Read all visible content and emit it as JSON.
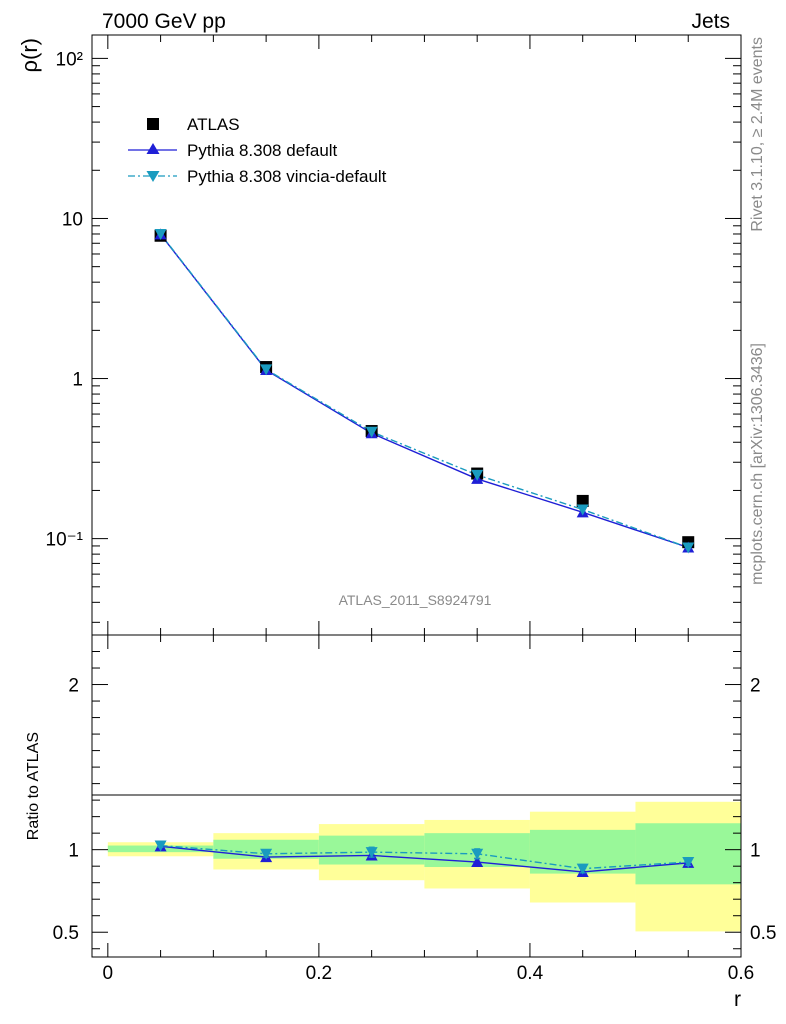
{
  "header": {
    "left_title": "7000 GeV pp",
    "right_title": "Jets",
    "analysis_tag": "ATLAS_2011_S8924791",
    "side_text_top": "Rivet 3.1.10, ≥ 2.4M events",
    "side_text_bottom": "mcplots.cern.ch [arXiv:1306.3436]"
  },
  "chart_data": [
    {
      "type": "scatter",
      "panel": "main",
      "ylabel": "ρ(r)",
      "yscale": "log",
      "ylim": [
        0.025,
        140
      ],
      "xlim": [
        -0.015,
        0.6
      ],
      "y_tick_labels": [
        "10⁻¹",
        "1",
        "10",
        "10²"
      ],
      "legend_position": "top-left",
      "x": [
        0.05,
        0.15,
        0.25,
        0.35,
        0.45,
        0.55
      ],
      "series": [
        {
          "name": "ATLAS",
          "marker": "square",
          "color": "#000000",
          "values": [
            7.8,
            1.18,
            0.47,
            0.255,
            0.172,
            0.095
          ]
        },
        {
          "name": "Pythia 8.308 default",
          "marker": "triangle-up",
          "line": "solid",
          "color": "#1f1fd6",
          "values": [
            7.95,
            1.13,
            0.455,
            0.236,
            0.146,
            0.088
          ]
        },
        {
          "name": "Pythia 8.308 vincia-default",
          "marker": "triangle-down",
          "line": "dashdot",
          "color": "#1a9bbf",
          "values": [
            8.0,
            1.14,
            0.465,
            0.25,
            0.152,
            0.088
          ]
        }
      ]
    },
    {
      "type": "scatter",
      "panel": "ratio",
      "ylabel": "Ratio to ATLAS",
      "xlabel": "r",
      "ylim": [
        0.35,
        2.3
      ],
      "xlim": [
        -0.015,
        0.6
      ],
      "x_ticks": [
        0,
        0.2,
        0.4,
        0.6
      ],
      "x_tick_labels": [
        "0",
        "0.2",
        "0.4",
        "0.6"
      ],
      "y_ticks": [
        0.5,
        1,
        2
      ],
      "y_tick_labels": [
        "0.5",
        "1",
        "2"
      ],
      "band_colors": {
        "inner": "#99f899",
        "outer": "#ffff99"
      },
      "bins": [
        {
          "lo": 0.0,
          "hi": 0.1,
          "inner": [
            0.985,
            1.025
          ],
          "outer": [
            0.96,
            1.045
          ]
        },
        {
          "lo": 0.1,
          "hi": 0.2,
          "inner": [
            0.945,
            1.06
          ],
          "outer": [
            0.88,
            1.1
          ]
        },
        {
          "lo": 0.2,
          "hi": 0.3,
          "inner": [
            0.91,
            1.085
          ],
          "outer": [
            0.815,
            1.155
          ]
        },
        {
          "lo": 0.3,
          "hi": 0.4,
          "inner": [
            0.895,
            1.1
          ],
          "outer": [
            0.765,
            1.18
          ]
        },
        {
          "lo": 0.4,
          "hi": 0.5,
          "inner": [
            0.855,
            1.12
          ],
          "outer": [
            0.68,
            1.23
          ]
        },
        {
          "lo": 0.5,
          "hi": 0.6,
          "inner": [
            0.79,
            1.16
          ],
          "outer": [
            0.505,
            1.29
          ]
        }
      ],
      "x": [
        0.05,
        0.15,
        0.25,
        0.35,
        0.45,
        0.55
      ],
      "series": [
        {
          "name": "Pythia 8.308 default",
          "marker": "triangle-up",
          "line": "solid",
          "color": "#1f1fd6",
          "values": [
            1.02,
            0.955,
            0.965,
            0.925,
            0.865,
            0.92
          ],
          "errors": [
            0.012,
            0.02,
            0.025,
            0.022,
            0.022,
            0.022
          ]
        },
        {
          "name": "Pythia 8.308 vincia-default",
          "marker": "triangle-down",
          "line": "dashdot",
          "color": "#1a9bbf",
          "values": [
            1.025,
            0.975,
            0.985,
            0.975,
            0.885,
            0.925
          ],
          "errors": [
            0.01,
            0.02,
            0.03,
            0.03,
            0.025,
            0.02
          ]
        }
      ]
    }
  ]
}
